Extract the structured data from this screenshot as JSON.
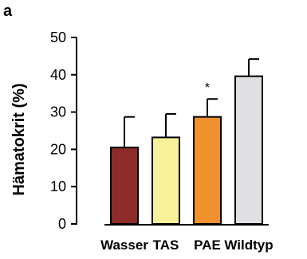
{
  "panel_label": "a",
  "chart_data": {
    "type": "bar",
    "categories": [
      "Wasser",
      "TAS",
      "PAE",
      "Wildtyp"
    ],
    "values": [
      20.5,
      23.2,
      28.7,
      39.6
    ],
    "errors": [
      8.2,
      6.3,
      4.8,
      4.6
    ],
    "colors": [
      "#8c2b27",
      "#f7f29a",
      "#f0912e",
      "#e0e0e2"
    ],
    "annotations": [
      "",
      "",
      "*",
      ""
    ],
    "title": "",
    "xlabel": "",
    "ylabel": "Hämatokrit (%)",
    "ylim": [
      0,
      50
    ],
    "yticks": [
      0,
      10,
      20,
      30,
      40,
      50
    ],
    "grid": false,
    "legend": "none"
  }
}
